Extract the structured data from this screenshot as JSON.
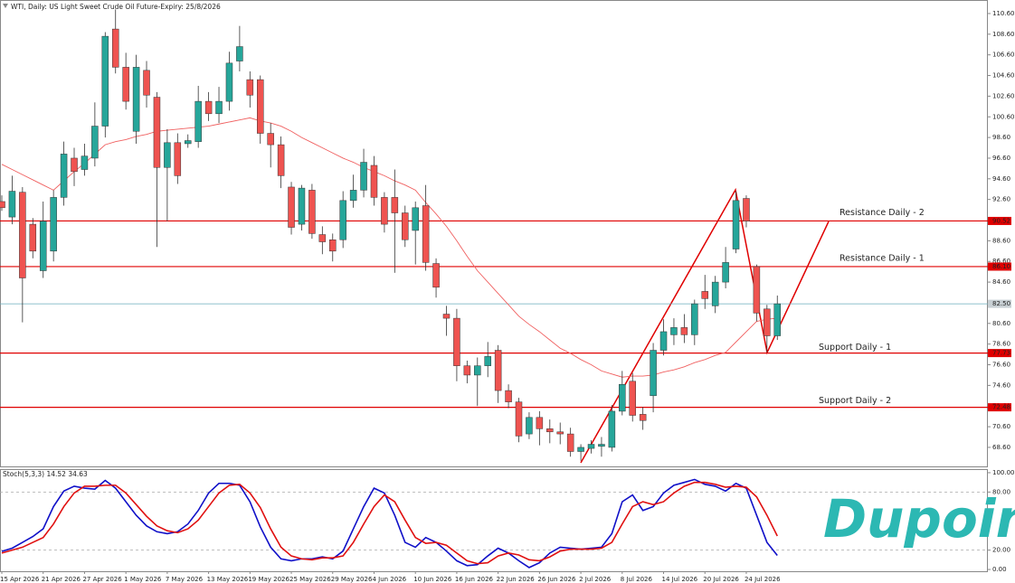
{
  "chart_data": [
    {
      "type": "candlestick",
      "title": "WTI, Daily:  US Light Sweet Crude Oil Future-Expiry: 25/8/2026",
      "categories": [
        "15 Apr 2026",
        null,
        null,
        null,
        "21 Apr 2026",
        null,
        null,
        null,
        "27 Apr 2026",
        null,
        null,
        null,
        "1 May 2026",
        null,
        null,
        null,
        "7 May 2026",
        null,
        null,
        null,
        "13 May 2026",
        null,
        null,
        null,
        "19 May 2026",
        null,
        null,
        null,
        "25 May 2026",
        null,
        null,
        null,
        "29 May 2026",
        null,
        null,
        null,
        "4 Jun 2026",
        null,
        null,
        null,
        "10 Jun 2026",
        null,
        null,
        null,
        "16 Jun 2026",
        null,
        null,
        null,
        "22 Jun 2026",
        null,
        null,
        null,
        "26 Jun 2026",
        null,
        null,
        null,
        "2 Jul 2026",
        null,
        null,
        null,
        "8 Jul 2026",
        null,
        null,
        null,
        "14 Jul 2026",
        null,
        null,
        null,
        "20 Jul 2026",
        null,
        null,
        null,
        "24 Jul 2026",
        null,
        null,
        null
      ],
      "open": [
        92.4,
        90.9,
        93.3,
        90.2,
        85.7,
        87.6,
        92.8,
        96.6,
        95.5,
        96.6,
        99.7,
        109.1,
        105.4,
        99.2,
        105.1,
        102.5,
        95.7,
        98.1,
        98.0,
        98.2,
        102.1,
        100.9,
        102.1,
        106.0,
        104.2,
        104.2,
        99.0,
        97.9,
        93.8,
        90.2,
        93.5,
        89.2,
        88.7,
        88.7,
        92.5,
        93.5,
        95.9,
        92.8,
        92.8,
        91.3,
        89.6,
        92.0,
        86.4,
        81.5,
        81.1,
        76.5,
        75.6,
        76.5,
        78.0,
        74.1,
        73.0,
        69.9,
        71.5,
        70.4,
        70.1,
        69.9,
        68.2,
        68.5,
        68.7,
        68.6,
        72.1,
        75.0,
        71.8,
        73.6,
        78.0,
        79.5,
        80.2,
        79.5,
        83.7,
        82.3,
        84.6,
        87.8,
        92.7,
        86.1,
        82.0,
        79.4
      ],
      "high": [
        93.0,
        94.9,
        93.8,
        90.8,
        92.4,
        93.5,
        98.2,
        97.6,
        98.0,
        102.0,
        108.8,
        111.0,
        106.8,
        106.6,
        106.0,
        103.0,
        99.4,
        99.0,
        98.9,
        103.6,
        103.0,
        103.5,
        106.9,
        109.4,
        105.0,
        104.6,
        100.0,
        98.7,
        94.3,
        94.0,
        94.1,
        90.0,
        89.3,
        93.4,
        95.0,
        97.5,
        96.8,
        93.3,
        95.5,
        92.0,
        92.4,
        94.0,
        86.9,
        82.3,
        82.0,
        77.0,
        77.3,
        78.8,
        78.5,
        74.7,
        73.4,
        72.0,
        72.1,
        71.3,
        71.0,
        70.5,
        68.9,
        69.3,
        69.6,
        72.7,
        76.0,
        75.8,
        72.5,
        78.7,
        81.0,
        81.1,
        81.5,
        82.9,
        85.3,
        85.2,
        88.0,
        93.4,
        93.0,
        86.3,
        82.4,
        83.3
      ],
      "low": [
        91.5,
        90.2,
        80.7,
        86.9,
        85.0,
        86.6,
        92.0,
        93.9,
        94.9,
        95.8,
        98.6,
        104.8,
        101.3,
        98.0,
        101.5,
        88.0,
        90.5,
        94.1,
        97.6,
        97.6,
        100.2,
        100.0,
        101.2,
        105.0,
        101.5,
        98.0,
        95.7,
        93.7,
        89.2,
        89.6,
        88.8,
        87.3,
        86.6,
        87.9,
        91.8,
        92.8,
        92.0,
        89.4,
        85.5,
        88.0,
        86.3,
        85.7,
        83.1,
        79.4,
        75.0,
        74.8,
        72.6,
        75.4,
        72.9,
        72.4,
        69.1,
        69.4,
        68.8,
        69.0,
        68.9,
        67.7,
        67.3,
        68.0,
        67.7,
        68.2,
        71.7,
        71.1,
        70.3,
        72.0,
        77.5,
        78.5,
        78.7,
        78.5,
        82.0,
        81.6,
        84.0,
        87.4,
        89.9,
        80.8,
        77.8,
        79.0
      ],
      "close": [
        91.8,
        93.4,
        85.0,
        87.6,
        90.5,
        92.8,
        97.0,
        95.3,
        96.8,
        99.7,
        108.4,
        105.4,
        102.1,
        105.4,
        102.7,
        95.7,
        98.1,
        94.9,
        98.3,
        102.1,
        100.9,
        102.1,
        105.8,
        107.4,
        102.7,
        99.0,
        97.9,
        94.9,
        89.9,
        93.7,
        89.3,
        88.5,
        87.6,
        92.5,
        93.5,
        96.2,
        92.8,
        90.2,
        91.3,
        88.7,
        91.8,
        86.5,
        84.1,
        81.1,
        76.5,
        75.6,
        76.5,
        77.4,
        74.1,
        73.0,
        69.7,
        71.5,
        70.4,
        70.1,
        69.9,
        68.2,
        68.6,
        68.9,
        68.9,
        72.1,
        74.7,
        71.7,
        71.2,
        78.0,
        79.8,
        80.2,
        79.5,
        82.5,
        83.0,
        84.6,
        86.5,
        92.5,
        90.5,
        81.6,
        79.4,
        82.5
      ],
      "moving_average": [
        96.0,
        95.5,
        95.0,
        94.5,
        94.0,
        93.5,
        94.4,
        95.3,
        96.1,
        97.0,
        97.9,
        98.2,
        98.4,
        98.7,
        98.9,
        99.2,
        99.3,
        99.4,
        99.5,
        99.6,
        99.7,
        99.9,
        100.1,
        100.3,
        100.5,
        100.2,
        100.0,
        99.7,
        99.2,
        98.6,
        98.1,
        97.6,
        97.1,
        96.6,
        96.2,
        95.7,
        95.3,
        94.9,
        94.4,
        94.0,
        93.5,
        92.3,
        91.2,
        90.0,
        88.6,
        87.1,
        85.7,
        84.6,
        83.5,
        82.4,
        81.3,
        80.5,
        79.8,
        79.0,
        78.2,
        77.7,
        77.1,
        76.6,
        76.0,
        75.7,
        75.4,
        75.5,
        75.5,
        75.6,
        75.9,
        76.1,
        76.4,
        76.8,
        77.1,
        77.5,
        77.8,
        78.8,
        79.8,
        80.8,
        81.0,
        81.1
      ],
      "up_color": "#26a69a",
      "down_color": "#ef5350",
      "ma_color": "#f06060",
      "ylim": [
        66.67,
        111.91
      ],
      "yticks": [
        {
          "value": 110.6,
          "label": "110.60"
        },
        {
          "value": 108.6,
          "label": "108.60"
        },
        {
          "value": 106.6,
          "label": "106.60"
        },
        {
          "value": 104.6,
          "label": "104.60"
        },
        {
          "value": 102.6,
          "label": "102.60"
        },
        {
          "value": 100.6,
          "label": "100.60"
        },
        {
          "value": 98.6,
          "label": "98.60"
        },
        {
          "value": 96.6,
          "label": "96.60"
        },
        {
          "value": 94.6,
          "label": "94.60"
        },
        {
          "value": 92.6,
          "label": "92.60"
        },
        {
          "value": 90.6,
          "label": "90.60"
        },
        {
          "value": 88.6,
          "label": "88.60"
        },
        {
          "value": 86.6,
          "label": "86.60"
        },
        {
          "value": 84.6,
          "label": "84.60"
        },
        {
          "value": 82.6,
          "label": "82.60"
        },
        {
          "value": 80.6,
          "label": "80.60"
        },
        {
          "value": 78.6,
          "label": "78.60"
        },
        {
          "value": 76.6,
          "label": "76.60"
        },
        {
          "value": 74.6,
          "label": "74.60"
        },
        {
          "value": 72.6,
          "label": "72.60"
        },
        {
          "value": 70.6,
          "label": "70.60"
        },
        {
          "value": 68.6,
          "label": "68.60"
        }
      ],
      "levels": [
        {
          "value": 90.52,
          "label": "90.52",
          "text": "Resistance Daily - 2",
          "color": "#e00000"
        },
        {
          "value": 86.1,
          "label": "86.10",
          "text": "Resistance Daily - 1",
          "color": "#e00000"
        },
        {
          "value": 82.5,
          "label": "82.50",
          "color": "#6aaebb"
        },
        {
          "value": 77.73,
          "label": "77.73",
          "text": "Support Daily - 1",
          "color": "#e00000"
        },
        {
          "value": 72.48,
          "label": "72.48",
          "text": "Support Daily - 2",
          "color": "#e00000"
        }
      ]
    },
    {
      "type": "line",
      "title": "Stoch(5,3,3) 14.52 34.63",
      "series": [
        {
          "color": "#1010c8",
          "values": [
            18.7,
            22,
            28,
            34,
            42,
            65,
            81,
            86,
            84,
            83,
            92,
            84,
            70,
            56,
            45,
            39,
            37,
            39,
            47,
            61,
            79,
            89,
            89,
            87,
            70,
            44,
            23,
            11,
            9,
            11,
            11,
            13,
            11,
            19,
            42,
            65,
            84,
            79,
            56,
            28,
            23,
            33,
            28,
            19,
            9,
            4,
            5,
            14,
            22,
            17,
            9,
            2,
            7,
            17,
            23,
            22,
            21,
            22,
            23,
            37,
            70,
            77,
            61,
            65,
            79,
            87,
            90,
            93,
            88,
            86,
            81,
            89,
            84,
            56,
            28,
            14.52
          ]
        },
        {
          "color": "#e01010",
          "values": [
            17,
            20,
            23,
            28,
            33,
            47,
            65,
            79,
            86,
            86,
            87,
            87,
            79,
            67,
            55,
            45,
            40,
            38,
            42,
            51,
            65,
            79,
            87,
            88,
            79,
            64,
            42,
            23,
            14,
            11,
            10,
            12,
            12,
            14,
            28,
            47,
            65,
            77,
            70,
            51,
            33,
            27,
            28,
            25,
            17,
            9,
            6,
            7,
            14,
            17,
            15,
            10,
            9,
            13,
            19,
            21,
            21,
            21,
            22,
            28,
            47,
            65,
            70,
            67,
            70,
            79,
            86,
            90,
            90,
            88,
            85,
            86,
            85,
            75,
            56,
            34.63
          ]
        }
      ],
      "ylim": [
        -9.3,
        103.7
      ],
      "yticks": [
        {
          "value": 100,
          "label": "100.00"
        },
        {
          "value": 80,
          "label": "80.00"
        },
        {
          "value": 20,
          "label": "20.00"
        },
        {
          "value": 0,
          "label": "0.00"
        }
      ],
      "levels": [
        80,
        20
      ]
    },
    {
      "logo": "Dupoin"
    }
  ]
}
